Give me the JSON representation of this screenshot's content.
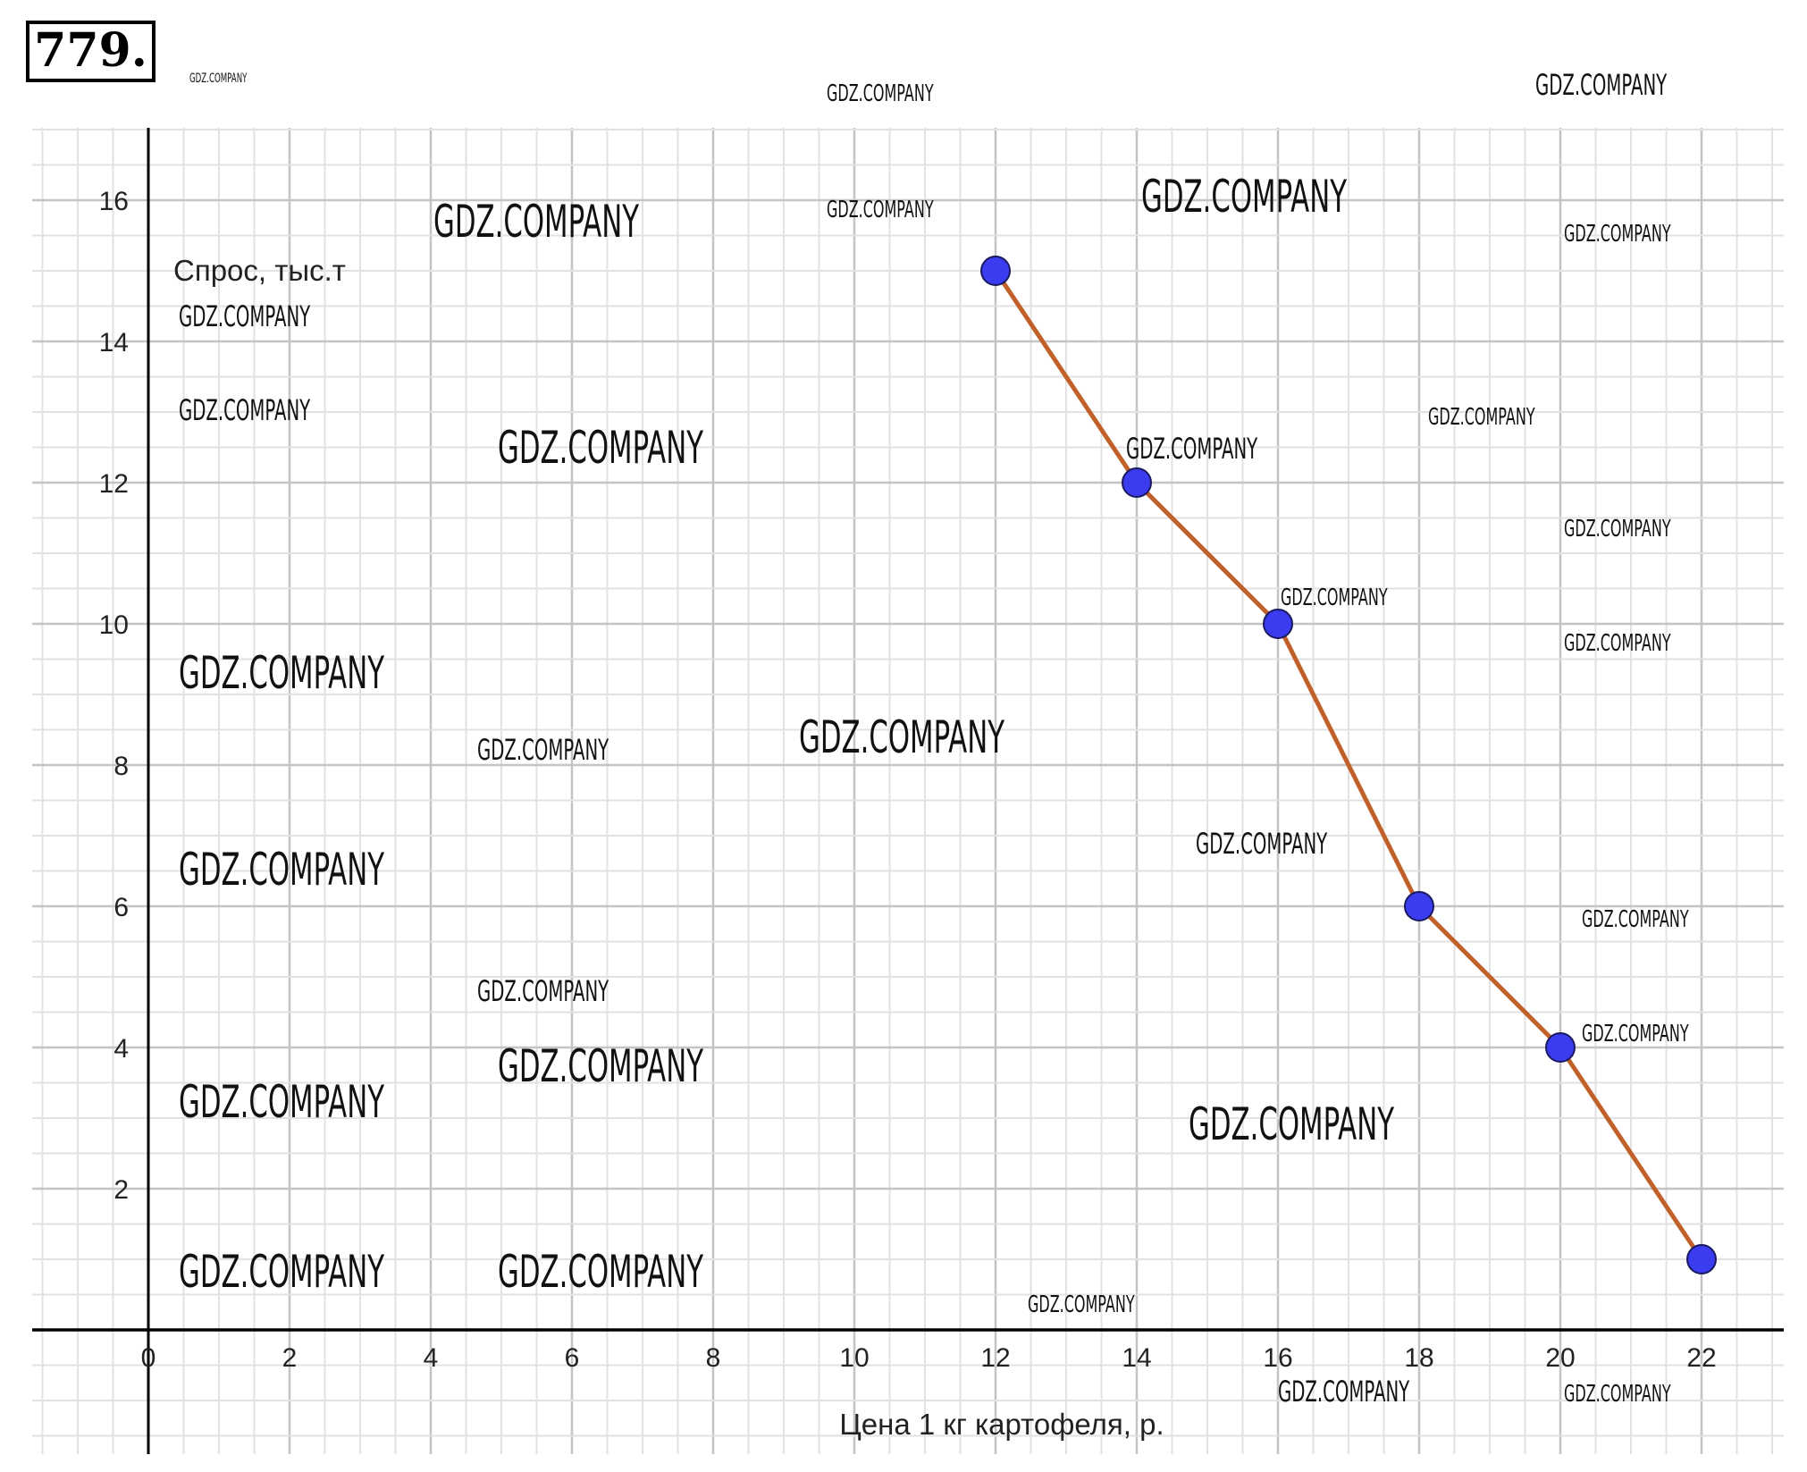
{
  "problem_number": "779.",
  "watermark": "GDZ.COMPANY",
  "colors": {
    "line": "#c0612b",
    "point": "#3b3bf0",
    "grid_major": "#c4c4c4",
    "grid_minor": "#e2e2e2",
    "axis": "#000000"
  },
  "chart_data": {
    "type": "line",
    "title": "",
    "xlabel": "Цена 1 кг картофеля, р.",
    "ylabel": "Спрос, тыс.т",
    "xlim": [
      -2.5,
      22.5
    ],
    "ylim": [
      -1.8,
      17.2
    ],
    "grid": true,
    "x_ticks": [
      0,
      2,
      4,
      6,
      8,
      10,
      12,
      14,
      16,
      18,
      20,
      22
    ],
    "y_ticks": [
      2,
      4,
      6,
      8,
      10,
      12,
      14,
      16
    ],
    "series": [
      {
        "x": [
          12,
          14,
          16,
          18,
          20,
          22
        ],
        "y": [
          15,
          12,
          10,
          6,
          4,
          1
        ],
        "markers": true
      }
    ]
  }
}
